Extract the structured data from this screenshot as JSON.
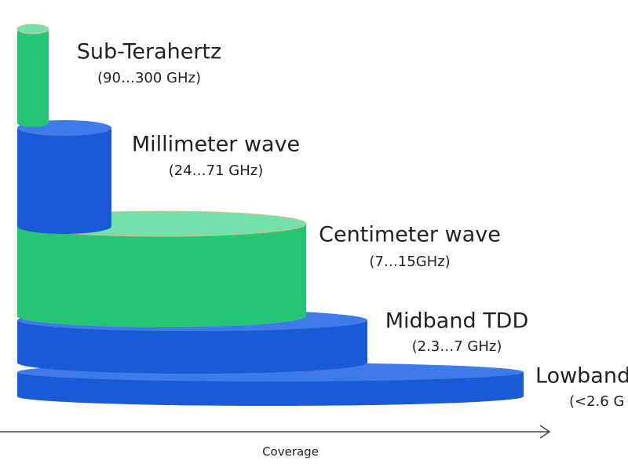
{
  "bands": [
    {
      "name": "Sub-Terahertz",
      "range": "(90…300 GHz)"
    },
    {
      "name": "Millimeter wave",
      "range": "(24…71 GHz)"
    },
    {
      "name": "Centimeter wave",
      "range": "(7…15GHz)"
    },
    {
      "name": "Midband TDD",
      "range": "(2.3…7 GHz)"
    },
    {
      "name": "Lowband",
      "range": "(<2.6 G"
    }
  ],
  "axis_label": "Coverage"
}
